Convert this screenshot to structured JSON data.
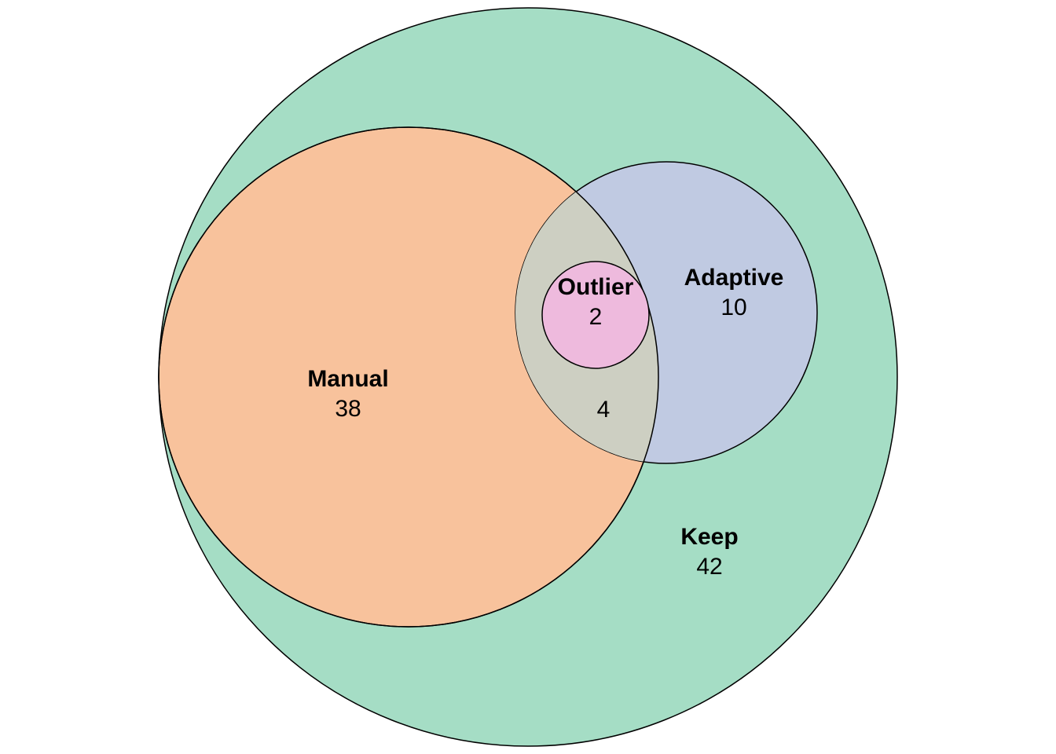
{
  "diagram": {
    "type": "euler-venn",
    "sets": [
      {
        "key": "keep",
        "name": "Keep",
        "color": "#a5ddc5"
      },
      {
        "key": "manual",
        "name": "Manual",
        "color": "#f8c29c"
      },
      {
        "key": "adaptive",
        "name": "Adaptive",
        "color": "#c0cae2"
      },
      {
        "key": "outlier",
        "name": "Outlier",
        "color": "#eebadd"
      }
    ],
    "overlap_color": "#cdcfc2",
    "region_counts": {
      "keep_only": "42",
      "keep_manual_only": "38",
      "keep_adaptive_only": "10",
      "keep_manual_adaptive": "4",
      "keep_manual_adaptive_outlier": "2"
    }
  }
}
